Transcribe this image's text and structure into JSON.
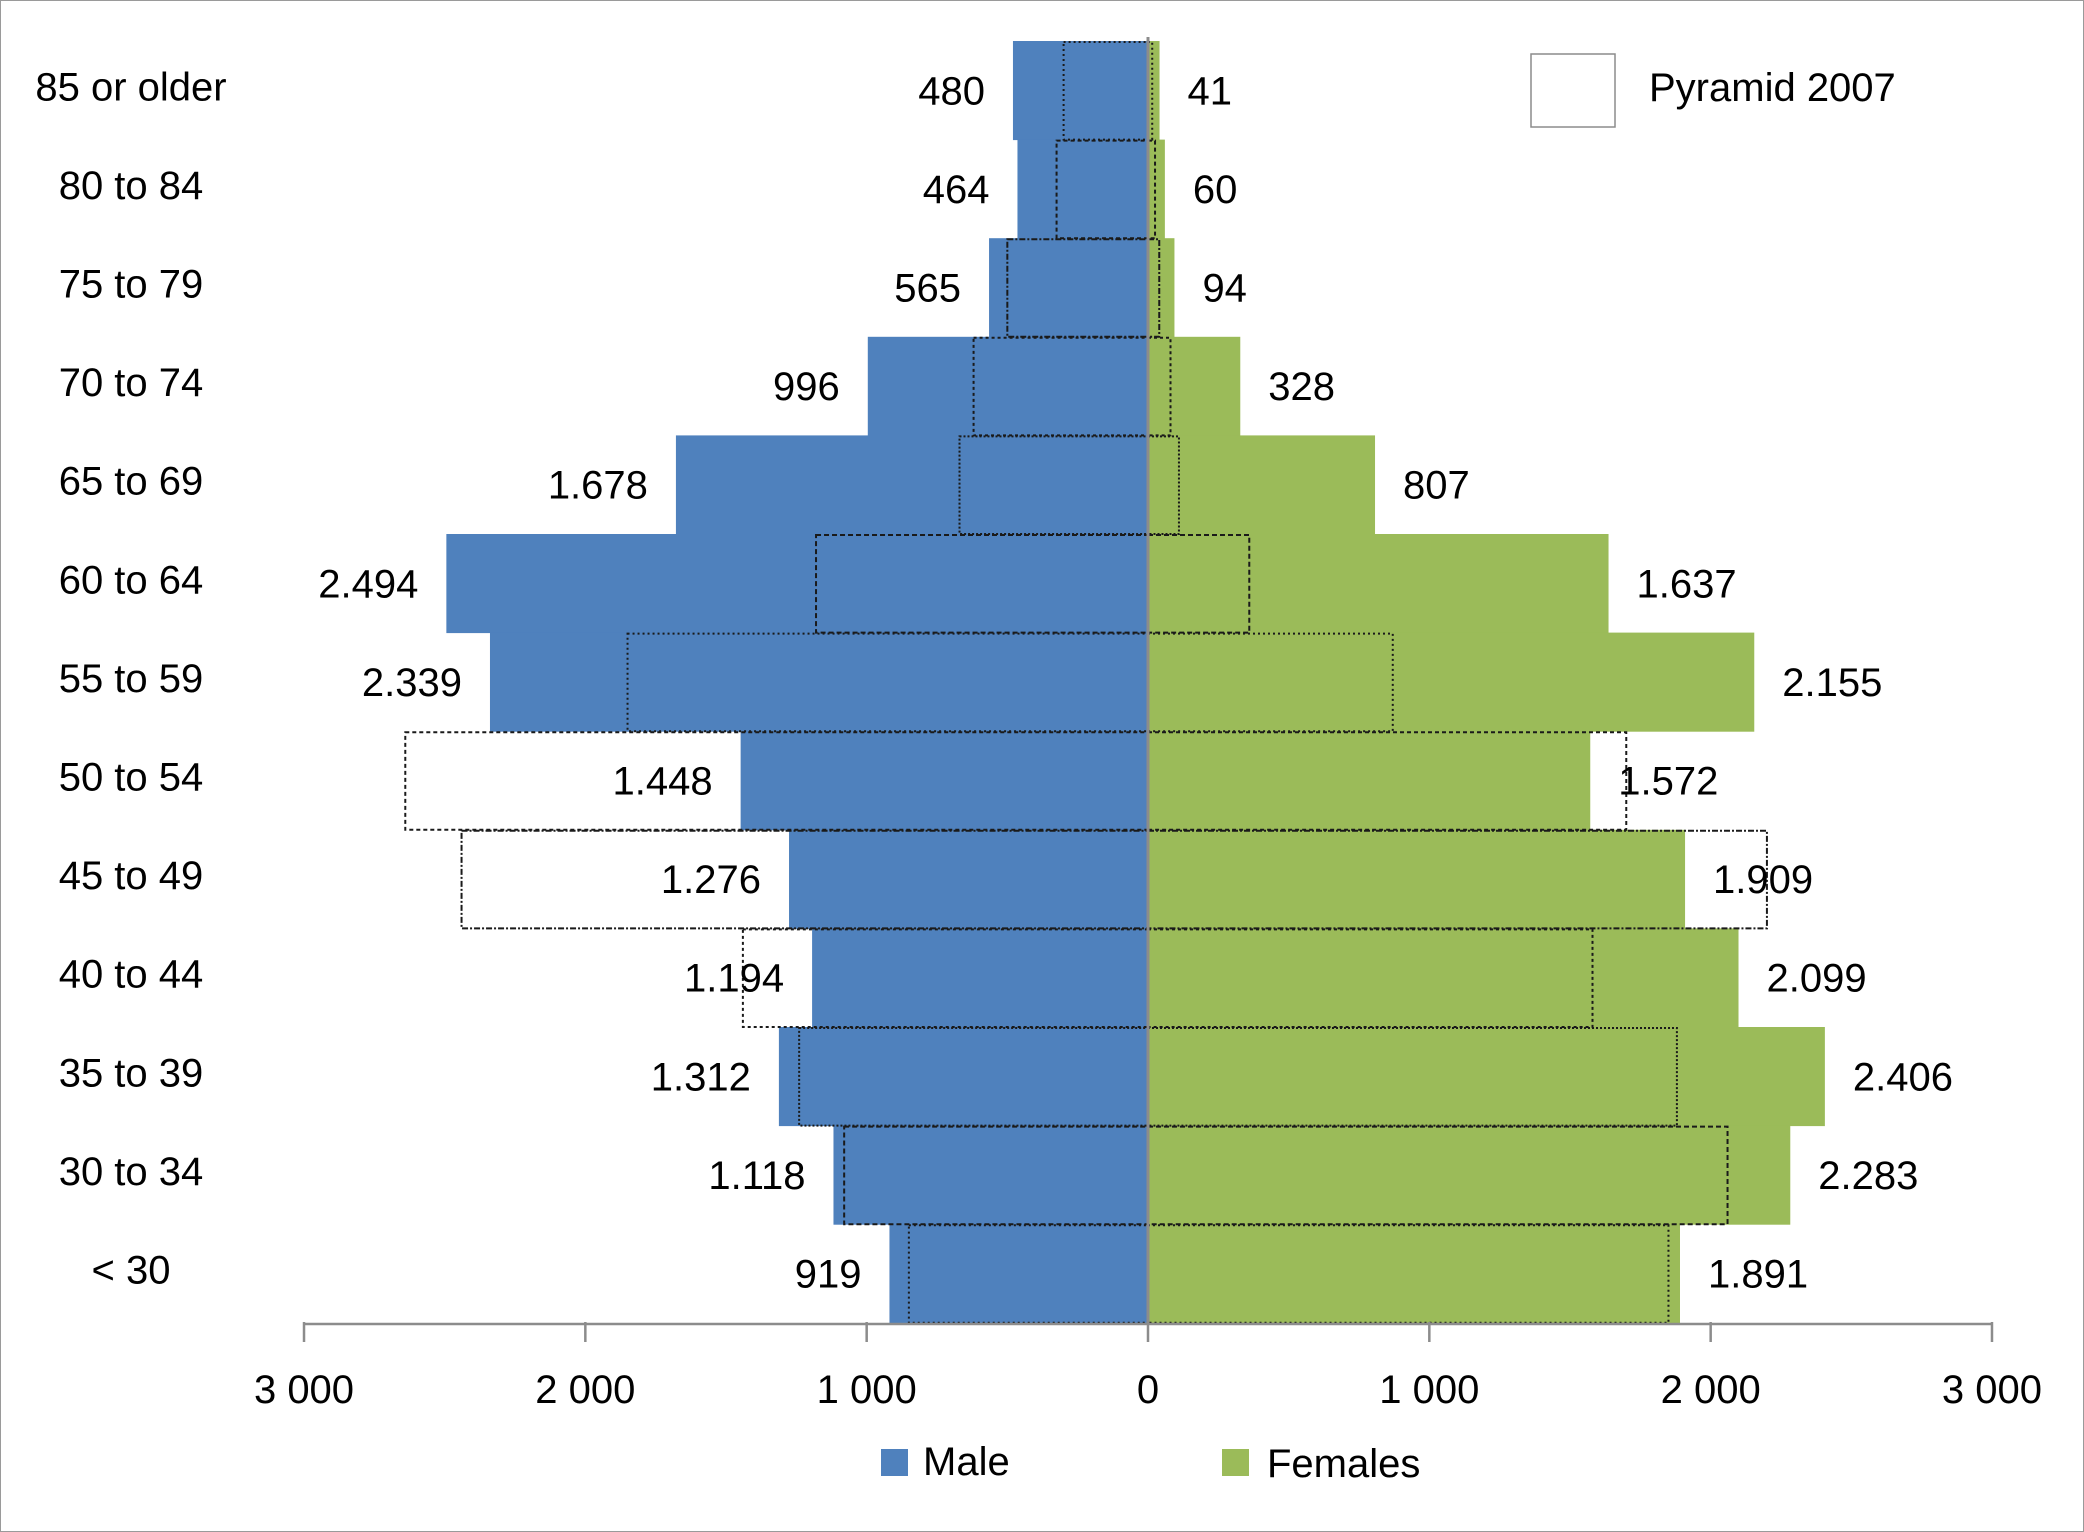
{
  "chart_data": {
    "type": "bar",
    "orientation": "horizontal",
    "style": "population-pyramid",
    "categories": [
      "85 or older",
      "80 to 84",
      "75 to 79",
      "70 to 74",
      "65 to 69",
      "60 to 64",
      "55 to 59",
      "50 to 54",
      "45 to 49",
      "40 to 44",
      "35 to 39",
      "30 to 34",
      "< 30"
    ],
    "series": [
      {
        "name": "Male",
        "side": "left",
        "color": "#4f81bd",
        "values": [
          480,
          464,
          565,
          996,
          1678,
          2494,
          2339,
          1448,
          1276,
          1194,
          1312,
          1118,
          919
        ],
        "data_labels": [
          "480",
          "464",
          "565",
          "996",
          "1.678",
          "2.494",
          "2.339",
          "1.448",
          "1.276",
          "1.194",
          "1.312",
          "1.118",
          "919"
        ]
      },
      {
        "name": "Females",
        "side": "right",
        "color": "#9bbb59",
        "values": [
          41,
          60,
          94,
          328,
          807,
          1637,
          2155,
          1572,
          1909,
          2099,
          2406,
          2283,
          1891
        ],
        "data_labels": [
          "41",
          "60",
          "94",
          "328",
          "807",
          "1.637",
          "2.155",
          "1.572",
          "1.909",
          "2.099",
          "2.406",
          "2.283",
          "1.891"
        ]
      }
    ],
    "overlay": {
      "name": "Pyramid 2007",
      "style": "dotted-outline",
      "male_values": [
        300,
        325,
        500,
        620,
        670,
        1180,
        1850,
        2640,
        2440,
        1440,
        1240,
        1080,
        850
      ],
      "female_values": [
        15,
        25,
        40,
        80,
        110,
        360,
        870,
        1700,
        2200,
        1580,
        1880,
        2060,
        1850
      ]
    },
    "x_axis": {
      "range": [
        -3000,
        3000
      ],
      "ticks": [
        -3000,
        -2000,
        -1000,
        0,
        1000,
        2000,
        3000
      ],
      "tick_labels": [
        "3 000",
        "2 000",
        "1 000",
        "0",
        "1 000",
        "2 000",
        "3 000"
      ]
    },
    "legend": {
      "bottom": [
        "Male",
        "Females"
      ],
      "top_right": "Pyramid 2007"
    },
    "title": "",
    "xlabel": "",
    "ylabel": "",
    "grid": false
  }
}
